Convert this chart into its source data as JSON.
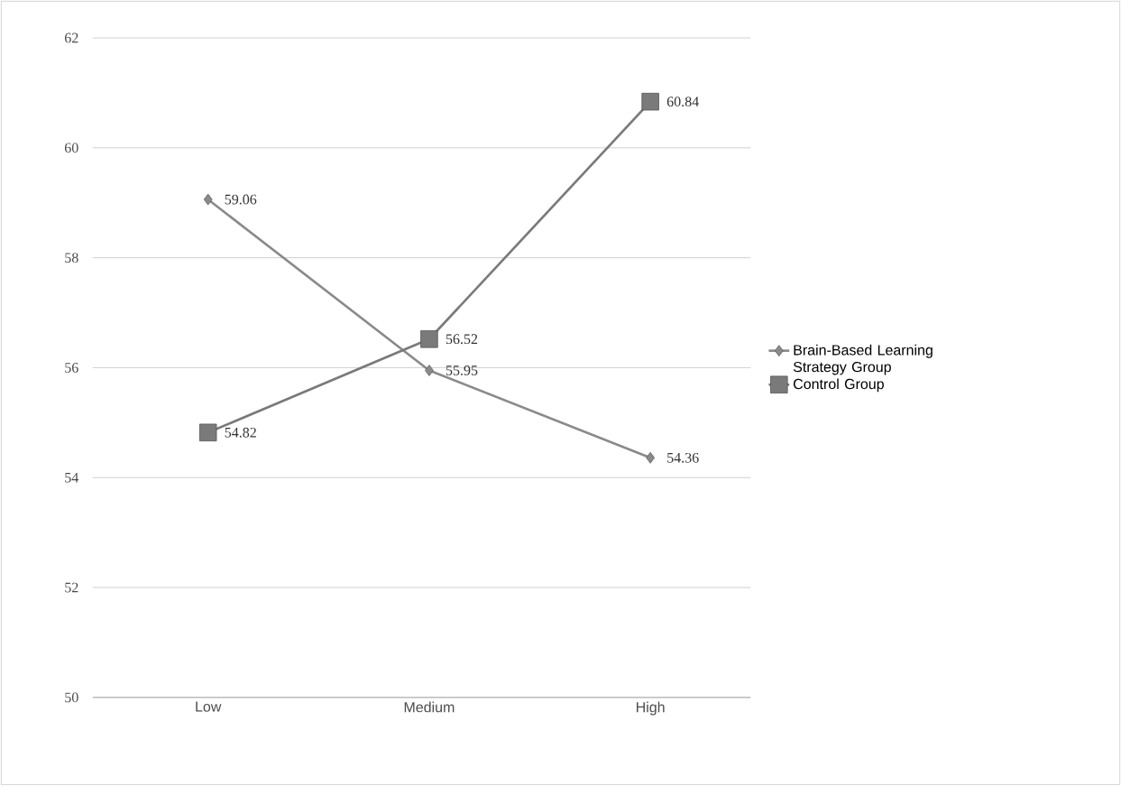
{
  "chart_data": {
    "type": "line",
    "categories": [
      "Low",
      "Medium",
      "High"
    ],
    "series": [
      {
        "name": "Brain-Based Learning Strategy Group",
        "color": "#8a8a8a",
        "marker": "diamond",
        "values": [
          59.06,
          55.95,
          54.36
        ]
      },
      {
        "name": "Control Group",
        "color": "#7a7a7a",
        "marker": "square",
        "values": [
          54.82,
          56.52,
          60.84
        ]
      }
    ],
    "ylim": [
      50,
      62
    ],
    "yticks": [
      50,
      52,
      54,
      56,
      58,
      60,
      62
    ],
    "grid": "y",
    "legend": "right",
    "data_labels": true,
    "line_style": "solid"
  }
}
